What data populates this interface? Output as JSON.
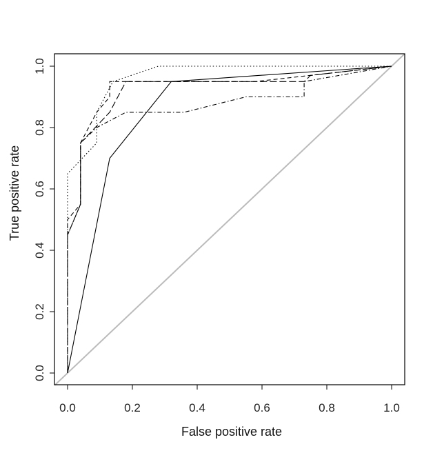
{
  "chart_data": {
    "type": "line",
    "title": "",
    "xlabel": "False positive rate",
    "ylabel": "True positive rate",
    "xlim": [
      0,
      1
    ],
    "ylim": [
      0,
      1
    ],
    "xticks": [
      "0.0",
      "0.2",
      "0.4",
      "0.6",
      "0.8",
      "1.0"
    ],
    "yticks": [
      "0.0",
      "0.2",
      "0.4",
      "0.6",
      "0.8",
      "1.0"
    ],
    "grid": false,
    "legend": "none",
    "series": [
      {
        "style": "solid",
        "color": "#000000",
        "points": [
          [
            0,
            0
          ],
          [
            0.13,
            0.7
          ],
          [
            0.32,
            0.95
          ],
          [
            1.0,
            1.0
          ]
        ]
      },
      {
        "style": "dotted",
        "color": "#000000",
        "points": [
          [
            0,
            0
          ],
          [
            0,
            0.65
          ],
          [
            0.09,
            0.75
          ],
          [
            0.09,
            0.85
          ],
          [
            0.14,
            0.95
          ],
          [
            0.28,
            1.0
          ],
          [
            1.0,
            1.0
          ]
        ]
      },
      {
        "style": "dashed",
        "color": "#000000",
        "points": [
          [
            0,
            0
          ],
          [
            0,
            0.5
          ],
          [
            0.04,
            0.55
          ],
          [
            0.04,
            0.75
          ],
          [
            0.09,
            0.85
          ],
          [
            0.13,
            0.9
          ],
          [
            0.13,
            0.95
          ],
          [
            0.58,
            0.95
          ],
          [
            1.0,
            1.0
          ]
        ]
      },
      {
        "style": "dotdash",
        "color": "#000000",
        "points": [
          [
            0,
            0
          ],
          [
            0,
            0.45
          ],
          [
            0.04,
            0.55
          ],
          [
            0.04,
            0.75
          ],
          [
            0.09,
            0.8
          ],
          [
            0.18,
            0.85
          ],
          [
            0.36,
            0.85
          ],
          [
            0.55,
            0.9
          ],
          [
            0.73,
            0.9
          ],
          [
            0.73,
            0.95
          ],
          [
            1.0,
            1.0
          ]
        ]
      },
      {
        "style": "longdash",
        "color": "#000000",
        "points": [
          [
            0,
            0
          ],
          [
            0,
            0.45
          ],
          [
            0.04,
            0.55
          ],
          [
            0.04,
            0.75
          ],
          [
            0.13,
            0.85
          ],
          [
            0.18,
            0.95
          ],
          [
            0.36,
            0.95
          ],
          [
            0.73,
            0.95
          ],
          [
            0.75,
            0.97
          ],
          [
            1.0,
            1.0
          ]
        ]
      },
      {
        "style": "reference-diagonal",
        "color": "#bbbbbb",
        "points": [
          [
            -0.04,
            -0.04
          ],
          [
            1.04,
            1.04
          ]
        ]
      }
    ]
  }
}
